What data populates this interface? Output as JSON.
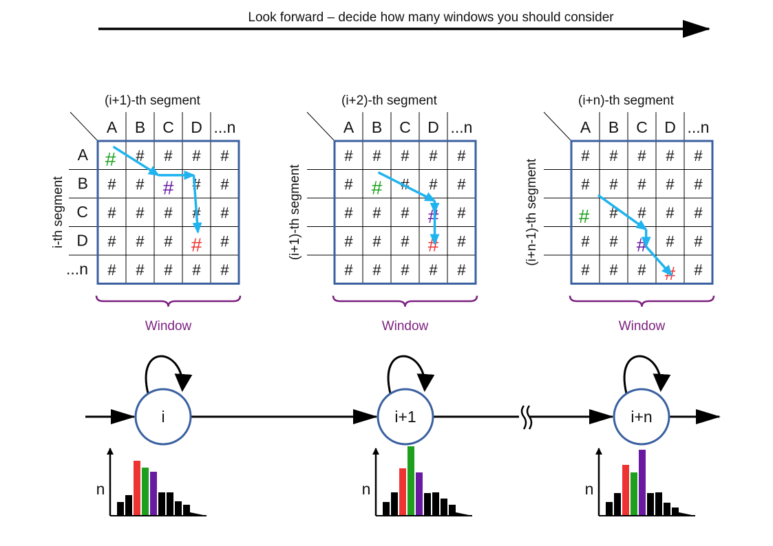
{
  "title": "Look forward – decide how many windows you should consider",
  "colors": {
    "frame": "#3a60a0",
    "arrow": "#1fb3ef",
    "green": "#1ea01e",
    "red": "#ee3333",
    "purple": "#6a1aa0",
    "brace": "#7b1f7f",
    "bar_black": "#000000"
  },
  "panels": [
    {
      "header": "(i+1)-th segment",
      "columns": [
        "A",
        "B",
        "C",
        "D",
        "...n"
      ],
      "row_labels": [
        "A",
        "B",
        "C",
        "D",
        "...n"
      ],
      "side_label": "i-th segment",
      "window_label": "Window",
      "highlights": [
        {
          "row": 0,
          "col": 0,
          "color": "green"
        },
        {
          "row": 1,
          "col": 2,
          "color": "purple"
        },
        {
          "row": 3,
          "col": 3,
          "color": "red"
        }
      ],
      "path": [
        [
          0,
          0
        ],
        [
          1,
          1.6
        ],
        [
          1,
          2.85
        ],
        [
          3,
          3.0
        ]
      ]
    },
    {
      "header": "(i+2)-th segment",
      "columns": [
        "A",
        "B",
        "C",
        "D",
        "...n"
      ],
      "row_labels": [],
      "side_label": "(i+1)-th segment",
      "window_label": "Window",
      "highlights": [
        {
          "row": 1,
          "col": 1,
          "color": "green"
        },
        {
          "row": 2,
          "col": 3,
          "color": "purple"
        },
        {
          "row": 3,
          "col": 3,
          "color": "red"
        }
      ],
      "path": [
        [
          0.9,
          1
        ],
        [
          1.9,
          3.0
        ],
        [
          2.3,
          3.0
        ],
        [
          3.4,
          3.0
        ]
      ]
    },
    {
      "header": "(i+n)-th segment",
      "columns": [
        "A",
        "B",
        "C",
        "D",
        "...n"
      ],
      "row_labels": [],
      "side_label": "(i+n-1)-th segment",
      "window_label": "Window",
      "highlights": [
        {
          "row": 2,
          "col": 0,
          "color": "green"
        },
        {
          "row": 3,
          "col": 2,
          "color": "purple"
        },
        {
          "row": 4,
          "col": 3,
          "color": "red"
        }
      ],
      "path": [
        [
          1.7,
          0.4
        ],
        [
          2.9,
          2.1
        ],
        [
          3.5,
          2.1
        ],
        [
          4.5,
          3.0
        ]
      ]
    }
  ],
  "cell_symbol": "#",
  "nodes": [
    {
      "label": "i"
    },
    {
      "label": "i+1"
    },
    {
      "label": "i+n"
    }
  ],
  "histogram_axis_label": "n",
  "histograms": [
    {
      "values": [
        2,
        3,
        8,
        7,
        6.4,
        3.4,
        3.4,
        2.1,
        1.6
      ],
      "colors": [
        "black",
        "black",
        "red",
        "green",
        "purple",
        "black",
        "black",
        "black",
        "black"
      ]
    },
    {
      "values": [
        2,
        3.4,
        6.9,
        10.1,
        6.3,
        3.3,
        3.4,
        2.5,
        1.6
      ],
      "colors": [
        "black",
        "black",
        "red",
        "green",
        "purple",
        "black",
        "black",
        "black",
        "black"
      ]
    },
    {
      "values": [
        2,
        3.3,
        7.4,
        6.3,
        9.6,
        3.3,
        3.4,
        1.9,
        1.2
      ],
      "colors": [
        "black",
        "black",
        "red",
        "green",
        "purple",
        "black",
        "black",
        "black",
        "black"
      ]
    }
  ]
}
